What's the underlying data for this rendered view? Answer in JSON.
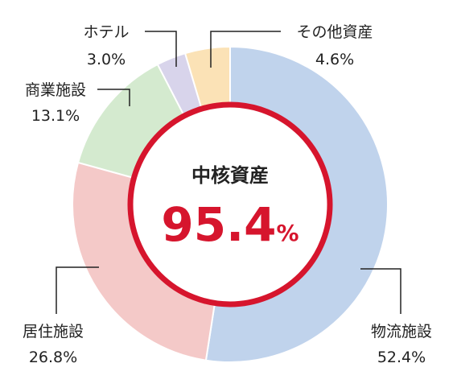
{
  "chart_data": {
    "type": "pie",
    "center": {
      "title": "中核資産",
      "value": "95.4",
      "unit": "%"
    },
    "slices": [
      {
        "category": "物流施設",
        "value": 52.4,
        "label": "52.4%",
        "color": "#c0d3ec"
      },
      {
        "category": "居住施設",
        "value": 26.8,
        "label": "26.8%",
        "color": "#f4c9c8"
      },
      {
        "category": "商業施設",
        "value": 13.1,
        "label": "13.1%",
        "color": "#d4eacf"
      },
      {
        "category": "ホテル",
        "value": 3.0,
        "label": "3.0%",
        "color": "#d8d4eb"
      },
      {
        "category": "その他資産",
        "value": 4.6,
        "label": "4.6%",
        "color": "#fbe2b6"
      }
    ],
    "ring_color": "#d6152d"
  }
}
